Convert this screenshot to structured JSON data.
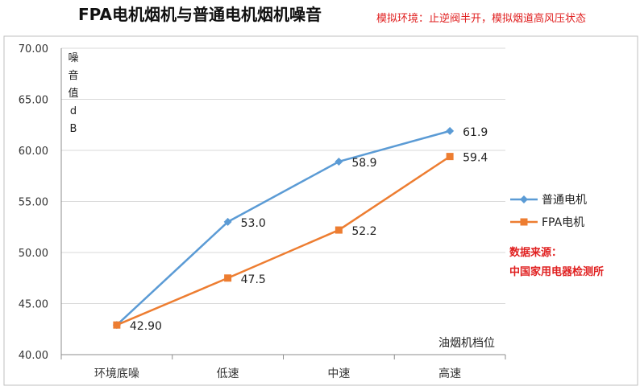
{
  "header": {
    "title": "FPA电机烟机与普通电机烟机噪音",
    "subtitle": "模拟环境：止逆阀半开，模拟烟道高风压状态"
  },
  "source": {
    "label": "数据来源：",
    "value": "中国家用电器检测所"
  },
  "chart_data": {
    "type": "line",
    "title": "FPA电机烟机与普通电机烟机噪音",
    "subtitle": "模拟环境：止逆阀半开，模拟烟道高风压状态",
    "xlabel": "油烟机档位",
    "ylabel": "噪音值dB",
    "ylabel_chars": [
      "噪",
      "音",
      "值",
      "d",
      "B"
    ],
    "ylim": [
      40,
      70
    ],
    "yticks": [
      40,
      45,
      50,
      55,
      60,
      65,
      70
    ],
    "ytick_labels": [
      "40.00",
      "45.00",
      "50.00",
      "55.00",
      "60.00",
      "65.00",
      "70.00"
    ],
    "grid": true,
    "legend_position": "right",
    "categories": [
      "环境底噪",
      "低速",
      "中速",
      "高速"
    ],
    "series": [
      {
        "name": "普通电机",
        "values": [
          42.9,
          53.0,
          58.9,
          61.9
        ],
        "labels": [
          "",
          "53.0",
          "58.9",
          "61.9"
        ],
        "color": "#5b9bd5",
        "marker": "diamond"
      },
      {
        "name": "FPA电机",
        "values": [
          42.9,
          47.5,
          52.2,
          59.4
        ],
        "labels": [
          "42.90",
          "47.5",
          "52.2",
          "59.4"
        ],
        "color": "#ed7d31",
        "marker": "square"
      }
    ]
  }
}
